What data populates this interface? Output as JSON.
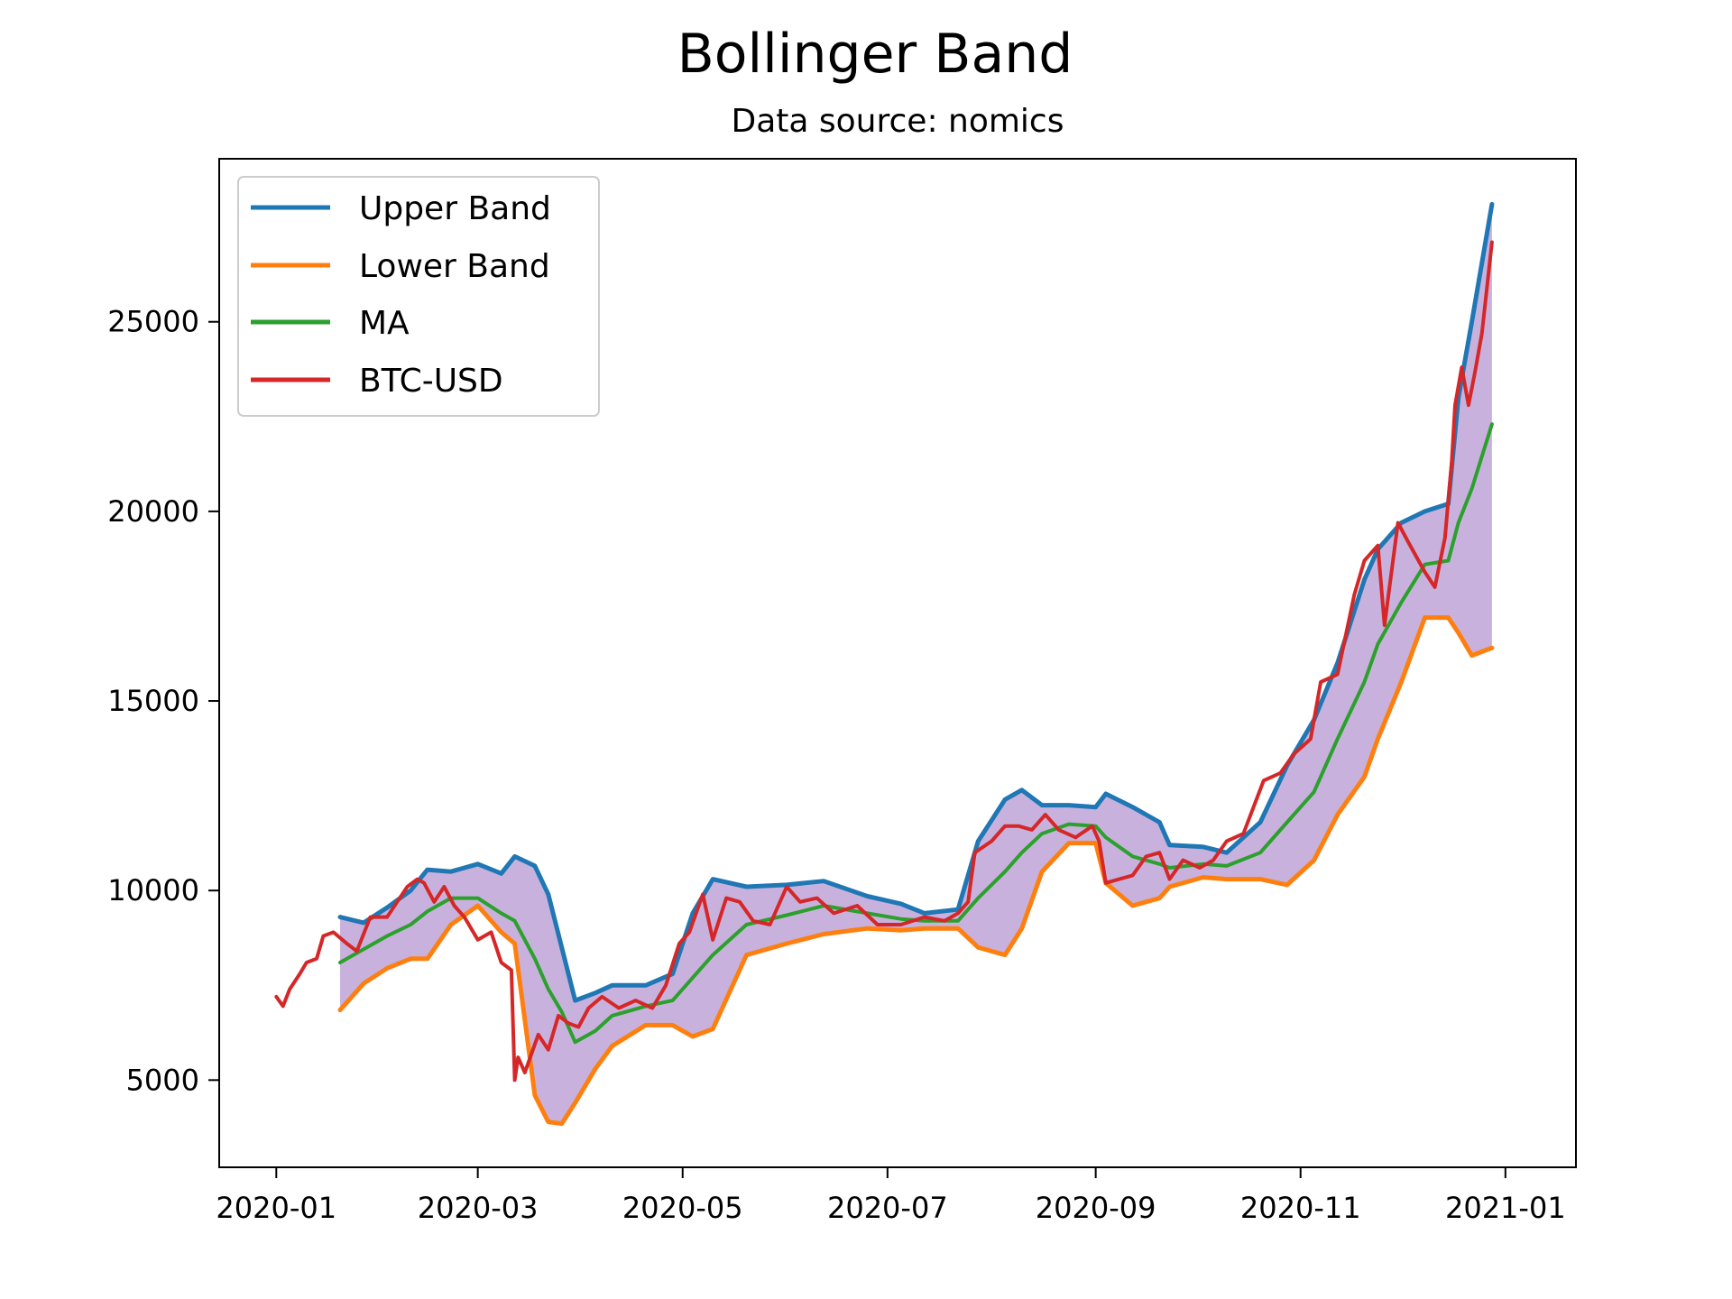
{
  "chart_data": {
    "type": "line",
    "title": "Bollinger Band",
    "subtitle": "Data source: nomics",
    "xlabel": "",
    "ylabel": "",
    "x_range": [
      "2019-12-15",
      "2021-01-22"
    ],
    "ylim": [
      2700,
      29300
    ],
    "x_ticks": [
      "2020-01",
      "2020-03",
      "2020-05",
      "2020-07",
      "2020-09",
      "2020-11",
      "2021-01"
    ],
    "x_tick_dates": [
      "2020-01-01",
      "2020-03-01",
      "2020-05-01",
      "2020-07-01",
      "2020-09-01",
      "2020-11-01",
      "2021-01-01"
    ],
    "y_ticks": [
      5000,
      10000,
      15000,
      20000,
      25000
    ],
    "grid": false,
    "legend_position": "top-left",
    "band_fill_color": "#c5aedb",
    "series": [
      {
        "name": "Upper Band",
        "color": "#1f77b4",
        "points": [
          [
            "2020-01-20",
            9300
          ],
          [
            "2020-01-27",
            9150
          ],
          [
            "2020-02-03",
            9550
          ],
          [
            "2020-02-10",
            10000
          ],
          [
            "2020-02-15",
            10550
          ],
          [
            "2020-02-22",
            10500
          ],
          [
            "2020-03-01",
            10700
          ],
          [
            "2020-03-08",
            10450
          ],
          [
            "2020-03-12",
            10900
          ],
          [
            "2020-03-18",
            10650
          ],
          [
            "2020-03-22",
            9900
          ],
          [
            "2020-03-26",
            8500
          ],
          [
            "2020-03-30",
            7100
          ],
          [
            "2020-04-05",
            7300
          ],
          [
            "2020-04-10",
            7500
          ],
          [
            "2020-04-20",
            7500
          ],
          [
            "2020-04-28",
            7800
          ],
          [
            "2020-05-04",
            9400
          ],
          [
            "2020-05-10",
            10300
          ],
          [
            "2020-05-20",
            10100
          ],
          [
            "2020-06-01",
            10150
          ],
          [
            "2020-06-12",
            10250
          ],
          [
            "2020-06-25",
            9850
          ],
          [
            "2020-07-05",
            9650
          ],
          [
            "2020-07-12",
            9400
          ],
          [
            "2020-07-22",
            9500
          ],
          [
            "2020-07-28",
            11300
          ],
          [
            "2020-08-05",
            12400
          ],
          [
            "2020-08-10",
            12650
          ],
          [
            "2020-08-16",
            12250
          ],
          [
            "2020-08-24",
            12250
          ],
          [
            "2020-09-01",
            12200
          ],
          [
            "2020-09-04",
            12550
          ],
          [
            "2020-09-12",
            12200
          ],
          [
            "2020-09-20",
            11800
          ],
          [
            "2020-09-23",
            11200
          ],
          [
            "2020-10-03",
            11150
          ],
          [
            "2020-10-10",
            11000
          ],
          [
            "2020-10-20",
            11800
          ],
          [
            "2020-10-28",
            13300
          ],
          [
            "2020-11-05",
            14500
          ],
          [
            "2020-11-12",
            16000
          ],
          [
            "2020-11-20",
            18200
          ],
          [
            "2020-11-24",
            19000
          ],
          [
            "2020-12-01",
            19700
          ],
          [
            "2020-12-08",
            20000
          ],
          [
            "2020-12-15",
            20200
          ],
          [
            "2020-12-18",
            23000
          ],
          [
            "2020-12-22",
            25000
          ],
          [
            "2020-12-28",
            28100
          ]
        ]
      },
      {
        "name": "Lower Band",
        "color": "#ff7f0e",
        "points": [
          [
            "2020-01-20",
            6850
          ],
          [
            "2020-01-27",
            7550
          ],
          [
            "2020-02-03",
            7950
          ],
          [
            "2020-02-10",
            8200
          ],
          [
            "2020-02-15",
            8200
          ],
          [
            "2020-02-22",
            9100
          ],
          [
            "2020-03-01",
            9600
          ],
          [
            "2020-03-08",
            8900
          ],
          [
            "2020-03-12",
            8600
          ],
          [
            "2020-03-18",
            4600
          ],
          [
            "2020-03-22",
            3900
          ],
          [
            "2020-03-26",
            3850
          ],
          [
            "2020-03-30",
            4400
          ],
          [
            "2020-04-05",
            5300
          ],
          [
            "2020-04-10",
            5900
          ],
          [
            "2020-04-20",
            6450
          ],
          [
            "2020-04-28",
            6450
          ],
          [
            "2020-05-04",
            6150
          ],
          [
            "2020-05-10",
            6350
          ],
          [
            "2020-05-20",
            8300
          ],
          [
            "2020-06-01",
            8600
          ],
          [
            "2020-06-12",
            8850
          ],
          [
            "2020-06-25",
            9000
          ],
          [
            "2020-07-05",
            8950
          ],
          [
            "2020-07-12",
            9000
          ],
          [
            "2020-07-22",
            9000
          ],
          [
            "2020-07-28",
            8500
          ],
          [
            "2020-08-05",
            8300
          ],
          [
            "2020-08-10",
            9000
          ],
          [
            "2020-08-16",
            10500
          ],
          [
            "2020-08-24",
            11250
          ],
          [
            "2020-09-01",
            11250
          ],
          [
            "2020-09-04",
            10200
          ],
          [
            "2020-09-12",
            9600
          ],
          [
            "2020-09-20",
            9800
          ],
          [
            "2020-09-23",
            10100
          ],
          [
            "2020-10-03",
            10350
          ],
          [
            "2020-10-10",
            10300
          ],
          [
            "2020-10-20",
            10300
          ],
          [
            "2020-10-28",
            10150
          ],
          [
            "2020-11-05",
            10800
          ],
          [
            "2020-11-12",
            12000
          ],
          [
            "2020-11-20",
            13000
          ],
          [
            "2020-11-24",
            14000
          ],
          [
            "2020-12-01",
            15500
          ],
          [
            "2020-12-08",
            17200
          ],
          [
            "2020-12-15",
            17200
          ],
          [
            "2020-12-18",
            16800
          ],
          [
            "2020-12-22",
            16200
          ],
          [
            "2020-12-28",
            16400
          ]
        ]
      },
      {
        "name": "MA",
        "color": "#2ca02c",
        "points": [
          [
            "2020-01-20",
            8100
          ],
          [
            "2020-01-27",
            8450
          ],
          [
            "2020-02-03",
            8800
          ],
          [
            "2020-02-10",
            9100
          ],
          [
            "2020-02-15",
            9450
          ],
          [
            "2020-02-22",
            9800
          ],
          [
            "2020-03-01",
            9800
          ],
          [
            "2020-03-08",
            9400
          ],
          [
            "2020-03-12",
            9200
          ],
          [
            "2020-03-18",
            8200
          ],
          [
            "2020-03-22",
            7400
          ],
          [
            "2020-03-26",
            6800
          ],
          [
            "2020-03-30",
            6000
          ],
          [
            "2020-04-05",
            6300
          ],
          [
            "2020-04-10",
            6700
          ],
          [
            "2020-04-20",
            6950
          ],
          [
            "2020-04-28",
            7100
          ],
          [
            "2020-05-04",
            7700
          ],
          [
            "2020-05-10",
            8300
          ],
          [
            "2020-05-20",
            9100
          ],
          [
            "2020-06-01",
            9350
          ],
          [
            "2020-06-12",
            9600
          ],
          [
            "2020-06-25",
            9400
          ],
          [
            "2020-07-05",
            9250
          ],
          [
            "2020-07-12",
            9200
          ],
          [
            "2020-07-22",
            9200
          ],
          [
            "2020-07-28",
            9800
          ],
          [
            "2020-08-05",
            10500
          ],
          [
            "2020-08-10",
            11000
          ],
          [
            "2020-08-16",
            11500
          ],
          [
            "2020-08-24",
            11750
          ],
          [
            "2020-09-01",
            11700
          ],
          [
            "2020-09-04",
            11400
          ],
          [
            "2020-09-12",
            10900
          ],
          [
            "2020-09-20",
            10700
          ],
          [
            "2020-09-23",
            10600
          ],
          [
            "2020-10-03",
            10700
          ],
          [
            "2020-10-10",
            10650
          ],
          [
            "2020-10-20",
            11000
          ],
          [
            "2020-10-28",
            11800
          ],
          [
            "2020-11-05",
            12600
          ],
          [
            "2020-11-12",
            14000
          ],
          [
            "2020-11-20",
            15500
          ],
          [
            "2020-11-24",
            16500
          ],
          [
            "2020-12-01",
            17600
          ],
          [
            "2020-12-08",
            18600
          ],
          [
            "2020-12-15",
            18700
          ],
          [
            "2020-12-18",
            19700
          ],
          [
            "2020-12-22",
            20600
          ],
          [
            "2020-12-28",
            22300
          ]
        ]
      },
      {
        "name": "BTC-USD",
        "color": "#d62728",
        "points": [
          [
            "2020-01-01",
            7200
          ],
          [
            "2020-01-03",
            6950
          ],
          [
            "2020-01-05",
            7400
          ],
          [
            "2020-01-08",
            7800
          ],
          [
            "2020-01-10",
            8100
          ],
          [
            "2020-01-13",
            8200
          ],
          [
            "2020-01-15",
            8800
          ],
          [
            "2020-01-18",
            8900
          ],
          [
            "2020-01-22",
            8600
          ],
          [
            "2020-01-25",
            8400
          ],
          [
            "2020-01-29",
            9300
          ],
          [
            "2020-02-03",
            9300
          ],
          [
            "2020-02-06",
            9700
          ],
          [
            "2020-02-09",
            10100
          ],
          [
            "2020-02-12",
            10300
          ],
          [
            "2020-02-14",
            10200
          ],
          [
            "2020-02-17",
            9700
          ],
          [
            "2020-02-20",
            10100
          ],
          [
            "2020-02-23",
            9600
          ],
          [
            "2020-02-26",
            9300
          ],
          [
            "2020-03-01",
            8700
          ],
          [
            "2020-03-05",
            8900
          ],
          [
            "2020-03-08",
            8100
          ],
          [
            "2020-03-11",
            7900
          ],
          [
            "2020-03-12",
            5000
          ],
          [
            "2020-03-13",
            5600
          ],
          [
            "2020-03-15",
            5200
          ],
          [
            "2020-03-19",
            6200
          ],
          [
            "2020-03-22",
            5800
          ],
          [
            "2020-03-25",
            6700
          ],
          [
            "2020-03-28",
            6500
          ],
          [
            "2020-03-31",
            6400
          ],
          [
            "2020-04-03",
            6900
          ],
          [
            "2020-04-07",
            7200
          ],
          [
            "2020-04-12",
            6900
          ],
          [
            "2020-04-17",
            7100
          ],
          [
            "2020-04-22",
            6900
          ],
          [
            "2020-04-26",
            7500
          ],
          [
            "2020-04-30",
            8600
          ],
          [
            "2020-05-03",
            8900
          ],
          [
            "2020-05-07",
            9900
          ],
          [
            "2020-05-10",
            8700
          ],
          [
            "2020-05-14",
            9800
          ],
          [
            "2020-05-18",
            9700
          ],
          [
            "2020-05-22",
            9200
          ],
          [
            "2020-05-27",
            9100
          ],
          [
            "2020-06-01",
            10100
          ],
          [
            "2020-06-05",
            9700
          ],
          [
            "2020-06-10",
            9800
          ],
          [
            "2020-06-15",
            9400
          ],
          [
            "2020-06-22",
            9600
          ],
          [
            "2020-06-28",
            9100
          ],
          [
            "2020-07-05",
            9100
          ],
          [
            "2020-07-12",
            9300
          ],
          [
            "2020-07-18",
            9200
          ],
          [
            "2020-07-22",
            9400
          ],
          [
            "2020-07-25",
            9700
          ],
          [
            "2020-07-27",
            11000
          ],
          [
            "2020-08-01",
            11300
          ],
          [
            "2020-08-05",
            11700
          ],
          [
            "2020-08-09",
            11700
          ],
          [
            "2020-08-13",
            11600
          ],
          [
            "2020-08-17",
            12000
          ],
          [
            "2020-08-21",
            11600
          ],
          [
            "2020-08-26",
            11400
          ],
          [
            "2020-08-31",
            11700
          ],
          [
            "2020-09-02",
            11300
          ],
          [
            "2020-09-04",
            10200
          ],
          [
            "2020-09-08",
            10300
          ],
          [
            "2020-09-12",
            10400
          ],
          [
            "2020-09-16",
            10900
          ],
          [
            "2020-09-20",
            11000
          ],
          [
            "2020-09-23",
            10300
          ],
          [
            "2020-09-27",
            10800
          ],
          [
            "2020-10-02",
            10600
          ],
          [
            "2020-10-06",
            10800
          ],
          [
            "2020-10-10",
            11300
          ],
          [
            "2020-10-15",
            11500
          ],
          [
            "2020-10-21",
            12900
          ],
          [
            "2020-10-26",
            13100
          ],
          [
            "2020-10-30",
            13600
          ],
          [
            "2020-11-04",
            14000
          ],
          [
            "2020-11-07",
            15500
          ],
          [
            "2020-11-12",
            15700
          ],
          [
            "2020-11-17",
            17800
          ],
          [
            "2020-11-20",
            18700
          ],
          [
            "2020-11-24",
            19100
          ],
          [
            "2020-11-26",
            17000
          ],
          [
            "2020-11-30",
            19700
          ],
          [
            "2020-12-03",
            19200
          ],
          [
            "2020-12-08",
            18400
          ],
          [
            "2020-12-11",
            18000
          ],
          [
            "2020-12-14",
            19300
          ],
          [
            "2020-12-16",
            21300
          ],
          [
            "2020-12-17",
            22800
          ],
          [
            "2020-12-19",
            23800
          ],
          [
            "2020-12-21",
            22800
          ],
          [
            "2020-12-23",
            23700
          ],
          [
            "2020-12-25",
            24700
          ],
          [
            "2020-12-27",
            26300
          ],
          [
            "2020-12-28",
            27100
          ]
        ]
      }
    ]
  }
}
